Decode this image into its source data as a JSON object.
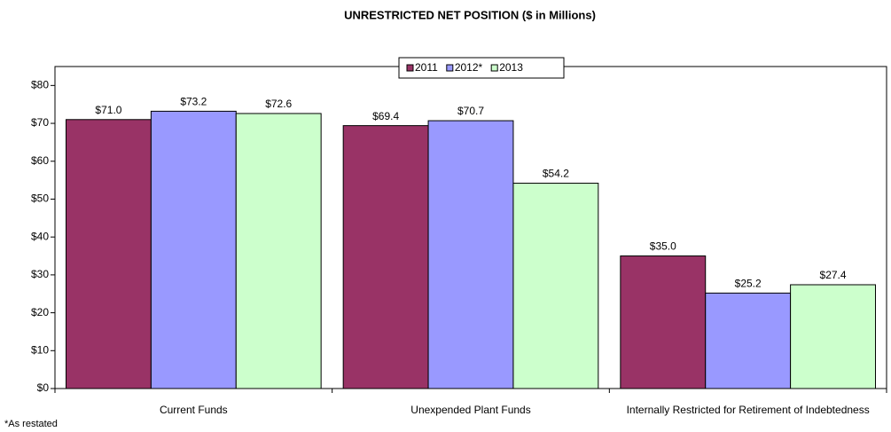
{
  "chart_data": {
    "type": "bar",
    "title": "UNRESTRICTED NET POSITION ($ in Millions)",
    "footnote": "*As restated",
    "categories": [
      "Current Funds",
      "Unexpended Plant Funds",
      "Internally Restricted for Retirement of Indebtedness"
    ],
    "series": [
      {
        "name": "2011",
        "color": "#993366",
        "values": [
          71.0,
          69.4,
          35.0
        ],
        "value_labels": [
          "$71.0",
          "$69.4",
          "$35.0"
        ]
      },
      {
        "name": "2012*",
        "color": "#9999ff",
        "values": [
          73.2,
          70.7,
          25.2
        ],
        "value_labels": [
          "$73.2",
          "$70.7",
          "$25.2"
        ]
      },
      {
        "name": "2013",
        "color": "#ccffcc",
        "values": [
          72.6,
          54.2,
          27.4
        ],
        "value_labels": [
          "$72.6",
          "$54.2",
          "$27.4"
        ]
      }
    ],
    "ylim": [
      0,
      85
    ],
    "yticks": [
      {
        "value": 0,
        "label": "$0"
      },
      {
        "value": 10,
        "label": "$10"
      },
      {
        "value": 20,
        "label": "$20"
      },
      {
        "value": 30,
        "label": "$30"
      },
      {
        "value": 40,
        "label": "$40"
      },
      {
        "value": 50,
        "label": "$50"
      },
      {
        "value": 60,
        "label": "$60"
      },
      {
        "value": 70,
        "label": "$70"
      },
      {
        "value": 80,
        "label": "$80"
      }
    ],
    "legend": "top"
  }
}
